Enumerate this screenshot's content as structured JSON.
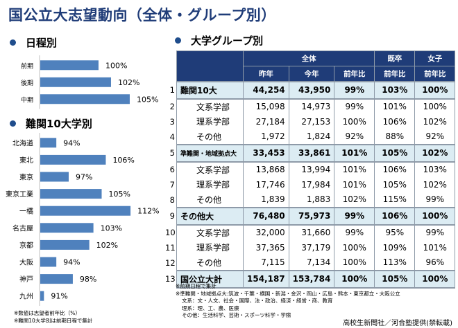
{
  "title": "国公立大志望動向（全体・グループ別）",
  "sections": {
    "schedule": "日程別",
    "top10": "難関10大学別",
    "groups": "大学グループ別"
  },
  "chart_data": [
    {
      "type": "bar",
      "orientation": "horizontal",
      "title": "日程別",
      "categories": [
        "前期",
        "後期",
        "中期"
      ],
      "values": [
        100,
        102,
        105
      ],
      "labels": [
        "100%",
        "102%",
        "105%"
      ],
      "unit": "%",
      "color": "#4f81bd"
    },
    {
      "type": "bar",
      "orientation": "horizontal",
      "title": "難関10大学別",
      "categories": [
        "北海道",
        "東北",
        "東京",
        "東京工業",
        "一橋",
        "名古屋",
        "京都",
        "大阪",
        "神戸",
        "九州"
      ],
      "values": [
        94,
        106,
        97,
        105,
        112,
        103,
        102,
        94,
        98,
        91
      ],
      "labels": [
        "94%",
        "106%",
        "97%",
        "105%",
        "112%",
        "103%",
        "102%",
        "94%",
        "98%",
        "91%"
      ],
      "unit": "%",
      "color": "#4f81bd"
    },
    {
      "type": "table",
      "title": "大学グループ別",
      "header_groups": [
        "全体",
        "既卒",
        "女子"
      ],
      "columns": [
        "昨年",
        "今年",
        "前年比",
        "前年比",
        "前年比"
      ],
      "rows": [
        {
          "n": "1",
          "label": "難関10大",
          "kind": "bold",
          "values": [
            "44,254",
            "43,950",
            "99%",
            "103%",
            "100%"
          ]
        },
        {
          "n": "2",
          "label": "文系学部",
          "kind": "sub",
          "values": [
            "15,098",
            "14,973",
            "99%",
            "101%",
            "100%"
          ]
        },
        {
          "n": "3",
          "label": "理系学部",
          "kind": "sub",
          "values": [
            "27,184",
            "27,153",
            "100%",
            "106%",
            "102%"
          ]
        },
        {
          "n": "4",
          "label": "その他",
          "kind": "sub",
          "values": [
            "1,972",
            "1,824",
            "92%",
            "88%",
            "92%"
          ]
        },
        {
          "n": "5",
          "label": "準難関・地域拠点大",
          "kind": "bold",
          "values": [
            "33,453",
            "33,861",
            "101%",
            "105%",
            "102%"
          ]
        },
        {
          "n": "6",
          "label": "文系学部",
          "kind": "sub",
          "values": [
            "13,868",
            "13,994",
            "101%",
            "106%",
            "103%"
          ]
        },
        {
          "n": "7",
          "label": "理系学部",
          "kind": "sub",
          "values": [
            "17,746",
            "17,984",
            "101%",
            "105%",
            "102%"
          ]
        },
        {
          "n": "8",
          "label": "その他",
          "kind": "sub",
          "values": [
            "1,839",
            "1,883",
            "102%",
            "115%",
            "99%"
          ]
        },
        {
          "n": "9",
          "label": "その他大",
          "kind": "bold",
          "values": [
            "76,480",
            "75,973",
            "99%",
            "106%",
            "100%"
          ]
        },
        {
          "n": "10",
          "label": "文系学部",
          "kind": "sub",
          "values": [
            "32,000",
            "31,660",
            "99%",
            "95%",
            "99%"
          ]
        },
        {
          "n": "11",
          "label": "理系学部",
          "kind": "sub",
          "values": [
            "37,365",
            "37,179",
            "100%",
            "109%",
            "101%"
          ]
        },
        {
          "n": "12",
          "label": "その他",
          "kind": "sub",
          "values": [
            "7,115",
            "7,134",
            "100%",
            "113%",
            "96%"
          ]
        },
        {
          "n": "13",
          "label": "国公立大計",
          "kind": "bold",
          "values": [
            "154,187",
            "153,784",
            "100%",
            "105%",
            "100%"
          ]
        }
      ]
    }
  ],
  "notes_left": [
    "※数値は志望者前年比（%）",
    "※難関10大学別は前期日程で集計"
  ],
  "notes_right": [
    "※前期日程で集計",
    "※準難関・地域拠点大:筑波・千葉・横国・新潟・金沢・岡山・広島・熊本・東京都立・大阪公立",
    "文系：文・人文、社会・国際、法・政治、経済・経営・商、教育",
    "理系：理、工、農、医療",
    "その他：生活科学、芸術・スポーツ科学・学際"
  ],
  "source": "高校生新聞社／河合塾提供(禁転載)",
  "colors": {
    "title": "#1f3c78",
    "bar": "#4f81bd",
    "header": "#1f3c78",
    "highlight_row": "#dcecf3"
  }
}
